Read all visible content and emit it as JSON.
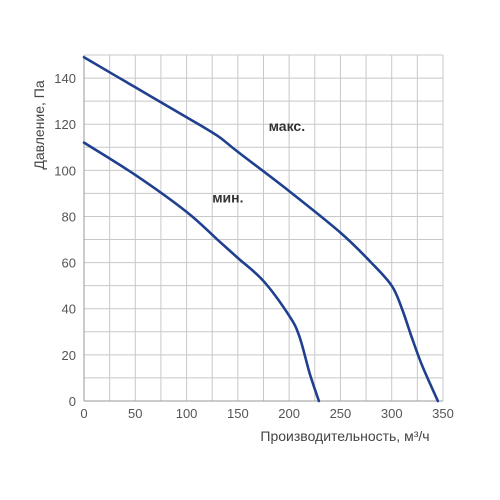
{
  "chart_data": {
    "type": "line",
    "xlabel": "Производительность, м³/ч",
    "ylabel": "Давление, Па",
    "xlim": [
      0,
      350
    ],
    "ylim": [
      0,
      150
    ],
    "x_ticks": [
      0,
      50,
      100,
      150,
      200,
      250,
      300,
      350
    ],
    "y_ticks": [
      0,
      20,
      40,
      60,
      80,
      100,
      120,
      140
    ],
    "x_minor_step": 25,
    "y_minor_step": 10,
    "grid": true,
    "line_color": "#1f3f8f",
    "series": [
      {
        "name": "макс.",
        "x": [
          0,
          50,
          100,
          130,
          150,
          200,
          250,
          280,
          300,
          310,
          320,
          330,
          345
        ],
        "y": [
          149,
          136,
          123,
          115,
          108,
          91,
          73,
          60,
          50,
          40,
          27,
          15,
          0
        ]
      },
      {
        "name": "мин.",
        "x": [
          0,
          50,
          100,
          130,
          150,
          175,
          200,
          210,
          220,
          229
        ],
        "y": [
          112,
          98,
          82,
          70,
          62,
          52,
          37,
          28,
          12,
          0
        ]
      }
    ]
  }
}
